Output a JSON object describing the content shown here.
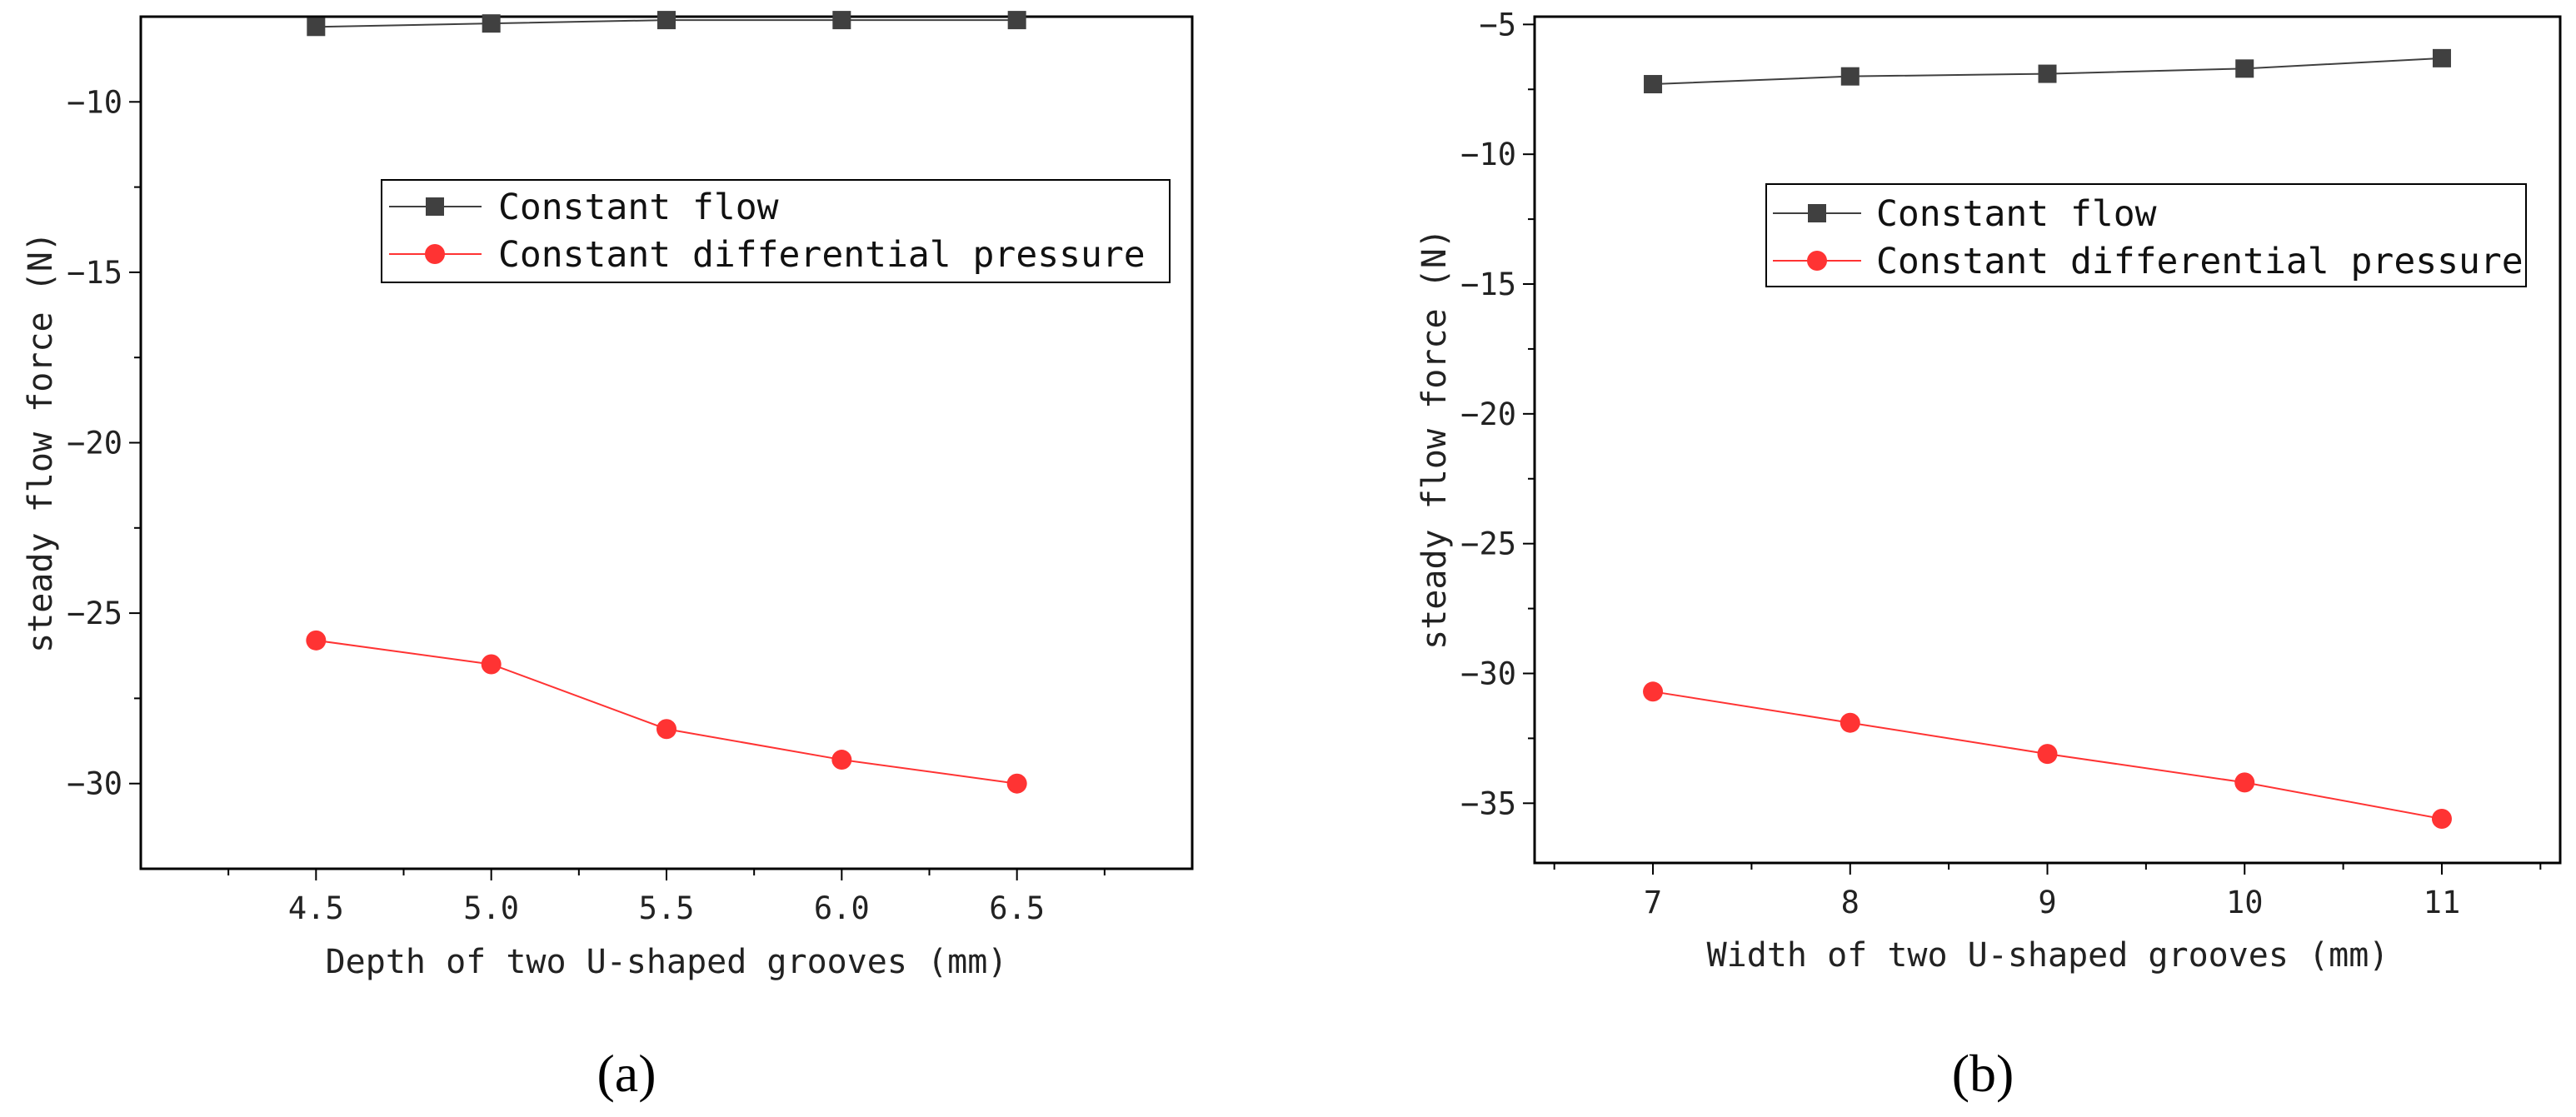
{
  "chart_data": [
    {
      "type": "line",
      "panel_label_open": "(",
      "panel_label_letter": "a",
      "panel_label_close": ")",
      "xlabel": "Depth of two U-shaped grooves (mm)",
      "ylabel": "steady flow force (N)",
      "x": [
        4.5,
        5.0,
        5.5,
        6.0,
        6.5
      ],
      "xtick_values": [
        4.5,
        5.0,
        5.5,
        6.0,
        6.5
      ],
      "xtick_labels": [
        "4.5",
        "5.0",
        "5.5",
        "6.0",
        "6.5"
      ],
      "ytick_values": [
        -10,
        -15,
        -20,
        -25,
        -30
      ],
      "ytick_labels": [
        "−10",
        "−15",
        "−20",
        "−25",
        "−30"
      ],
      "xlim": [
        4.0,
        7.0
      ],
      "ylim": [
        -32.5,
        -7.5
      ],
      "legend_position": "upper-middle",
      "series": [
        {
          "name": "Constant flow",
          "color": "#404040",
          "marker": "square",
          "values": [
            -7.8,
            -7.7,
            -7.6,
            -7.6,
            -7.6
          ]
        },
        {
          "name": "Constant differential pressure",
          "color": "#ff3333",
          "marker": "circle",
          "values": [
            -25.8,
            -26.5,
            -28.4,
            -29.3,
            -30.0
          ]
        }
      ]
    },
    {
      "type": "line",
      "panel_label_open": "(",
      "panel_label_letter": "b",
      "panel_label_close": ")",
      "xlabel": "Width of two U-shaped grooves (mm)",
      "ylabel": "steady flow force (N)",
      "x": [
        7,
        8,
        9,
        10,
        11
      ],
      "xtick_values": [
        7,
        8,
        9,
        10,
        11
      ],
      "xtick_labels": [
        "7",
        "8",
        "9",
        "10",
        "11"
      ],
      "ytick_values": [
        -5,
        -10,
        -15,
        -20,
        -25,
        -30,
        -35
      ],
      "ytick_labels": [
        "−5",
        "−10",
        "−15",
        "−20",
        "−25",
        "−30",
        "−35"
      ],
      "xlim": [
        6.4,
        11.6
      ],
      "ylim": [
        -37.3,
        -4.7
      ],
      "legend_position": "upper-middle",
      "series": [
        {
          "name": "Constant flow",
          "color": "#404040",
          "marker": "square",
          "values": [
            -7.3,
            -7.0,
            -6.9,
            -6.7,
            -6.3
          ]
        },
        {
          "name": "Constant differential pressure",
          "color": "#ff3333",
          "marker": "circle",
          "values": [
            -30.7,
            -31.9,
            -33.1,
            -34.2,
            -35.6
          ]
        }
      ]
    }
  ]
}
